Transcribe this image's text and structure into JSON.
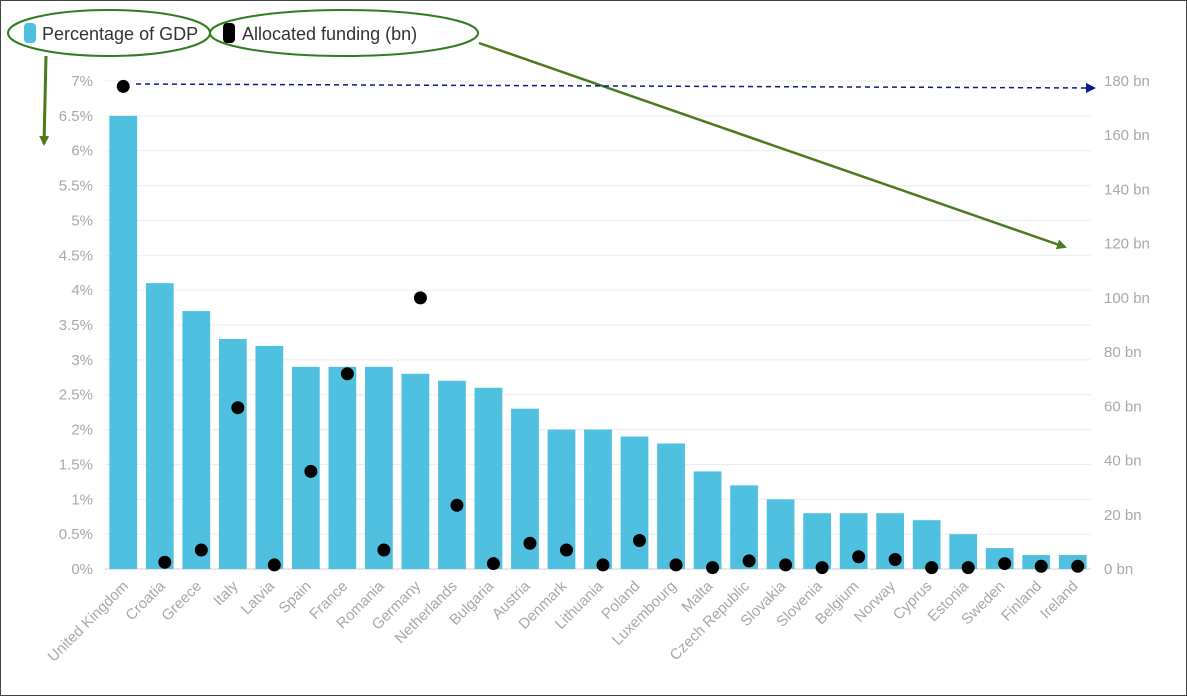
{
  "chart_data": {
    "type": "bar",
    "legend": {
      "placement": "top-left",
      "items": [
        {
          "name": "Percentage of GDP",
          "color": "#4fc0e0",
          "marker": "bar"
        },
        {
          "name": "Allocated funding (bn)",
          "color": "#000000",
          "marker": "dot"
        }
      ]
    },
    "categories": [
      "United Kingdom",
      "Croatia",
      "Greece",
      "Italy",
      "Latvia",
      "Spain",
      "France",
      "Romania",
      "Germany",
      "Netherlands",
      "Bulgaria",
      "Austria",
      "Denmark",
      "Lithuania",
      "Poland",
      "Luxembourg",
      "Malta",
      "Czech Republic",
      "Slovakia",
      "Slovenia",
      "Belgium",
      "Norway",
      "Cyprus",
      "Estonia",
      "Sweden",
      "Finland",
      "Ireland"
    ],
    "series": [
      {
        "name": "Percentage of GDP",
        "type": "bar",
        "axis": "left",
        "color": "#4fc0e0",
        "values": [
          6.5,
          4.1,
          3.7,
          3.3,
          3.2,
          2.9,
          2.9,
          2.9,
          2.8,
          2.7,
          2.6,
          2.3,
          2.0,
          2.0,
          1.9,
          1.8,
          1.4,
          1.2,
          1.0,
          0.8,
          0.8,
          0.8,
          0.7,
          0.5,
          0.3,
          0.2,
          0.2
        ]
      },
      {
        "name": "Allocated funding (bn)",
        "type": "scatter",
        "axis": "right",
        "color": "#000000",
        "values": [
          178,
          2.5,
          7,
          59.5,
          1.5,
          36,
          72,
          7,
          100,
          23.5,
          2,
          9.5,
          7,
          1.5,
          10.5,
          1.5,
          0.5,
          3,
          1.5,
          0.5,
          4.5,
          3.5,
          0.5,
          0.5,
          2,
          1,
          1
        ]
      }
    ],
    "yaxis_left": {
      "ylim": [
        0,
        7
      ],
      "ticks": [
        "0%",
        "0.5%",
        "1%",
        "1.5%",
        "2%",
        "2.5%",
        "3%",
        "3.5%",
        "4%",
        "4.5%",
        "5%",
        "5.5%",
        "6%",
        "6.5%",
        "7%"
      ]
    },
    "yaxis_right": {
      "ylim": [
        0,
        180
      ],
      "ticks": [
        "0 bn",
        "20 bn",
        "40 bn",
        "60 bn",
        "80 bn",
        "100 bn",
        "120 bn",
        "140 bn",
        "160 bn",
        "180 bn"
      ]
    },
    "grid": true,
    "annotations": {
      "ellipse_color": "#2e7d1e",
      "arrow_color": "#4a7a1a",
      "dashed_line_color": "#0a1a8a"
    }
  }
}
